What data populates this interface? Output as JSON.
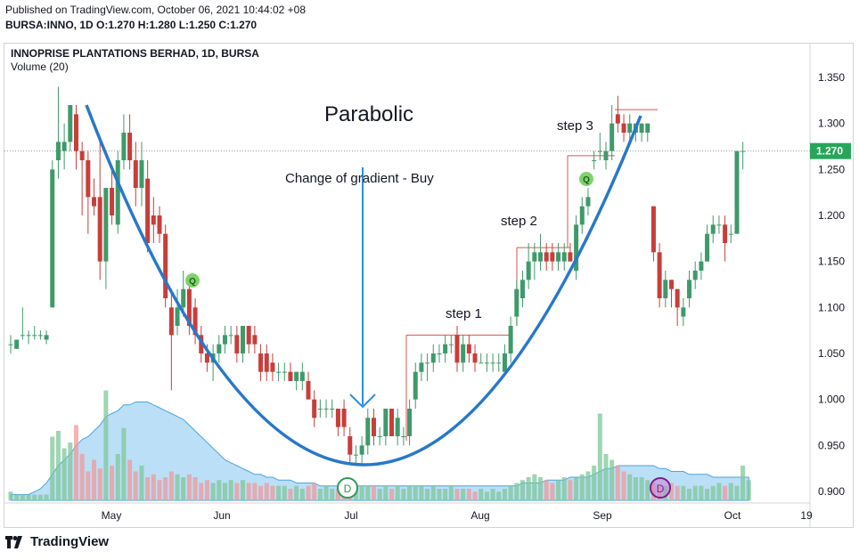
{
  "header": {
    "published": "Published on TradingView.com, October 06, 2021 10:44:02 +08",
    "ohlc_line": "BURSA:INNO, 1D  O:1.270 H:1.280 L:1.250 C:1.270"
  },
  "legend": {
    "symbol": "INNOPRISE PLANTATIONS BERHAD, 1D, BURSA",
    "volume": "Volume (20)"
  },
  "footer": {
    "brand": "TradingView"
  },
  "colors": {
    "up": "#3f9a6a",
    "down": "#c83e3a",
    "curve": "#2878c8",
    "last_price": "#26a65b"
  },
  "chart_data": {
    "type": "candlestick",
    "y_ticks": [
      "1.350",
      "1.300",
      "1.250",
      "1.200",
      "1.150",
      "1.100",
      "1.050",
      "1.000",
      "0.950",
      "0.900"
    ],
    "ylim": [
      0.885,
      1.365
    ],
    "x_labels": [
      "May",
      "Jun",
      "Jul",
      "Aug",
      "Sep",
      "Oct",
      "19"
    ],
    "last_price_label": "1.270",
    "candles": [
      {
        "o": 1.06,
        "h": 1.07,
        "l": 1.05,
        "c": 1.06
      },
      {
        "o": 1.055,
        "h": 1.065,
        "l": 1.055,
        "c": 1.065
      },
      {
        "o": 1.07,
        "h": 1.1,
        "l": 1.065,
        "c": 1.07
      },
      {
        "o": 1.07,
        "h": 1.075,
        "l": 1.06,
        "c": 1.07
      },
      {
        "o": 1.07,
        "h": 1.08,
        "l": 1.065,
        "c": 1.07
      },
      {
        "o": 1.07,
        "h": 1.075,
        "l": 1.065,
        "c": 1.07
      },
      {
        "o": 1.065,
        "h": 1.075,
        "l": 1.06,
        "c": 1.07
      },
      {
        "o": 1.1,
        "h": 1.26,
        "l": 1.1,
        "c": 1.25
      },
      {
        "o": 1.26,
        "h": 1.34,
        "l": 1.24,
        "c": 1.28
      },
      {
        "o": 1.27,
        "h": 1.3,
        "l": 1.25,
        "c": 1.28
      },
      {
        "o": 1.28,
        "h": 1.32,
        "l": 1.27,
        "c": 1.32
      },
      {
        "o": 1.31,
        "h": 1.32,
        "l": 1.25,
        "c": 1.27
      },
      {
        "o": 1.27,
        "h": 1.28,
        "l": 1.2,
        "c": 1.26
      },
      {
        "o": 1.26,
        "h": 1.27,
        "l": 1.18,
        "c": 1.22
      },
      {
        "o": 1.22,
        "h": 1.24,
        "l": 1.2,
        "c": 1.21
      },
      {
        "o": 1.22,
        "h": 1.28,
        "l": 1.13,
        "c": 1.15
      },
      {
        "o": 1.15,
        "h": 1.23,
        "l": 1.12,
        "c": 1.23
      },
      {
        "o": 1.23,
        "h": 1.25,
        "l": 1.19,
        "c": 1.2
      },
      {
        "o": 1.19,
        "h": 1.27,
        "l": 1.18,
        "c": 1.26
      },
      {
        "o": 1.26,
        "h": 1.31,
        "l": 1.25,
        "c": 1.29
      },
      {
        "o": 1.29,
        "h": 1.31,
        "l": 1.25,
        "c": 1.26
      },
      {
        "o": 1.26,
        "h": 1.28,
        "l": 1.21,
        "c": 1.23
      },
      {
        "o": 1.23,
        "h": 1.28,
        "l": 1.21,
        "c": 1.26
      },
      {
        "o": 1.24,
        "h": 1.26,
        "l": 1.16,
        "c": 1.17
      },
      {
        "o": 1.2,
        "h": 1.22,
        "l": 1.17,
        "c": 1.19
      },
      {
        "o": 1.2,
        "h": 1.21,
        "l": 1.17,
        "c": 1.18
      },
      {
        "o": 1.18,
        "h": 1.19,
        "l": 1.1,
        "c": 1.11
      },
      {
        "o": 1.1,
        "h": 1.12,
        "l": 1.01,
        "c": 1.07
      },
      {
        "o": 1.08,
        "h": 1.12,
        "l": 1.07,
        "c": 1.1
      },
      {
        "o": 1.1,
        "h": 1.14,
        "l": 1.09,
        "c": 1.12
      },
      {
        "o": 1.12,
        "h": 1.13,
        "l": 1.07,
        "c": 1.08
      },
      {
        "o": 1.1,
        "h": 1.11,
        "l": 1.06,
        "c": 1.07
      },
      {
        "o": 1.07,
        "h": 1.08,
        "l": 1.04,
        "c": 1.05
      },
      {
        "o": 1.05,
        "h": 1.06,
        "l": 1.03,
        "c": 1.04
      },
      {
        "o": 1.04,
        "h": 1.06,
        "l": 1.02,
        "c": 1.05
      },
      {
        "o": 1.05,
        "h": 1.07,
        "l": 1.04,
        "c": 1.06
      },
      {
        "o": 1.06,
        "h": 1.08,
        "l": 1.05,
        "c": 1.07
      },
      {
        "o": 1.07,
        "h": 1.08,
        "l": 1.06,
        "c": 1.07
      },
      {
        "o": 1.07,
        "h": 1.08,
        "l": 1.04,
        "c": 1.05
      },
      {
        "o": 1.05,
        "h": 1.08,
        "l": 1.04,
        "c": 1.08
      },
      {
        "o": 1.08,
        "h": 1.08,
        "l": 1.05,
        "c": 1.06
      },
      {
        "o": 1.07,
        "h": 1.08,
        "l": 1.05,
        "c": 1.06
      },
      {
        "o": 1.05,
        "h": 1.06,
        "l": 1.02,
        "c": 1.03
      },
      {
        "o": 1.05,
        "h": 1.06,
        "l": 1.02,
        "c": 1.03
      },
      {
        "o": 1.04,
        "h": 1.05,
        "l": 1.02,
        "c": 1.03
      },
      {
        "o": 1.03,
        "h": 1.04,
        "l": 1.02,
        "c": 1.03
      },
      {
        "o": 1.03,
        "h": 1.04,
        "l": 1.02,
        "c": 1.03
      },
      {
        "o": 1.03,
        "h": 1.04,
        "l": 1.02,
        "c": 1.02
      },
      {
        "o": 1.02,
        "h": 1.03,
        "l": 1.01,
        "c": 1.03
      },
      {
        "o": 1.02,
        "h": 1.04,
        "l": 1.01,
        "c": 1.03
      },
      {
        "o": 1.02,
        "h": 1.03,
        "l": 1.0,
        "c": 1.0
      },
      {
        "o": 1.0,
        "h": 1.01,
        "l": 0.97,
        "c": 0.98
      },
      {
        "o": 0.99,
        "h": 1.0,
        "l": 0.98,
        "c": 0.99
      },
      {
        "o": 0.99,
        "h": 1.0,
        "l": 0.98,
        "c": 0.99
      },
      {
        "o": 0.99,
        "h": 1.0,
        "l": 0.98,
        "c": 0.99
      },
      {
        "o": 0.99,
        "h": 0.99,
        "l": 0.96,
        "c": 0.97
      },
      {
        "o": 0.99,
        "h": 1.0,
        "l": 0.96,
        "c": 0.97
      },
      {
        "o": 0.96,
        "h": 0.97,
        "l": 0.93,
        "c": 0.94
      },
      {
        "o": 0.94,
        "h": 0.95,
        "l": 0.93,
        "c": 0.94
      },
      {
        "o": 0.94,
        "h": 0.96,
        "l": 0.93,
        "c": 0.95
      },
      {
        "o": 0.95,
        "h": 0.99,
        "l": 0.94,
        "c": 0.98
      },
      {
        "o": 0.98,
        "h": 0.99,
        "l": 0.95,
        "c": 0.96
      },
      {
        "o": 0.96,
        "h": 0.97,
        "l": 0.95,
        "c": 0.96
      },
      {
        "o": 0.96,
        "h": 0.99,
        "l": 0.95,
        "c": 0.99
      },
      {
        "o": 0.99,
        "h": 0.99,
        "l": 0.96,
        "c": 0.96
      },
      {
        "o": 0.96,
        "h": 0.99,
        "l": 0.95,
        "c": 0.98
      },
      {
        "o": 0.96,
        "h": 0.97,
        "l": 0.95,
        "c": 0.96
      },
      {
        "o": 0.96,
        "h": 1.0,
        "l": 0.95,
        "c": 0.99
      },
      {
        "o": 1.0,
        "h": 1.04,
        "l": 0.99,
        "c": 1.03
      },
      {
        "o": 1.03,
        "h": 1.05,
        "l": 1.02,
        "c": 1.04
      },
      {
        "o": 1.04,
        "h": 1.05,
        "l": 1.02,
        "c": 1.04
      },
      {
        "o": 1.04,
        "h": 1.06,
        "l": 1.03,
        "c": 1.05
      },
      {
        "o": 1.05,
        "h": 1.06,
        "l": 1.04,
        "c": 1.05
      },
      {
        "o": 1.05,
        "h": 1.07,
        "l": 1.04,
        "c": 1.06
      },
      {
        "o": 1.06,
        "h": 1.07,
        "l": 1.05,
        "c": 1.06
      },
      {
        "o": 1.07,
        "h": 1.08,
        "l": 1.03,
        "c": 1.04
      },
      {
        "o": 1.04,
        "h": 1.07,
        "l": 1.03,
        "c": 1.06
      },
      {
        "o": 1.06,
        "h": 1.07,
        "l": 1.04,
        "c": 1.05
      },
      {
        "o": 1.05,
        "h": 1.06,
        "l": 1.03,
        "c": 1.04
      },
      {
        "o": 1.04,
        "h": 1.05,
        "l": 1.04,
        "c": 1.04
      },
      {
        "o": 1.04,
        "h": 1.05,
        "l": 1.03,
        "c": 1.04
      },
      {
        "o": 1.04,
        "h": 1.05,
        "l": 1.03,
        "c": 1.04
      },
      {
        "o": 1.04,
        "h": 1.05,
        "l": 1.03,
        "c": 1.04
      },
      {
        "o": 1.03,
        "h": 1.06,
        "l": 1.03,
        "c": 1.05
      },
      {
        "o": 1.05,
        "h": 1.09,
        "l": 1.04,
        "c": 1.08
      },
      {
        "o": 1.09,
        "h": 1.13,
        "l": 1.08,
        "c": 1.12
      },
      {
        "o": 1.11,
        "h": 1.14,
        "l": 1.1,
        "c": 1.13
      },
      {
        "o": 1.13,
        "h": 1.17,
        "l": 1.12,
        "c": 1.15
      },
      {
        "o": 1.15,
        "h": 1.17,
        "l": 1.13,
        "c": 1.16
      },
      {
        "o": 1.15,
        "h": 1.18,
        "l": 1.14,
        "c": 1.16
      },
      {
        "o": 1.16,
        "h": 1.17,
        "l": 1.14,
        "c": 1.15
      },
      {
        "o": 1.16,
        "h": 1.17,
        "l": 1.14,
        "c": 1.15
      },
      {
        "o": 1.15,
        "h": 1.17,
        "l": 1.14,
        "c": 1.16
      },
      {
        "o": 1.15,
        "h": 1.17,
        "l": 1.14,
        "c": 1.16
      },
      {
        "o": 1.16,
        "h": 1.17,
        "l": 1.15,
        "c": 1.15
      },
      {
        "o": 1.14,
        "h": 1.2,
        "l": 1.13,
        "c": 1.19
      },
      {
        "o": 1.19,
        "h": 1.22,
        "l": 1.18,
        "c": 1.21
      },
      {
        "o": 1.21,
        "h": 1.23,
        "l": 1.2,
        "c": 1.22
      },
      {
        "o": 1.26,
        "h": 1.27,
        "l": 1.25,
        "c": 1.26
      },
      {
        "o": 1.27,
        "h": 1.29,
        "l": 1.26,
        "c": 1.27
      },
      {
        "o": 1.26,
        "h": 1.28,
        "l": 1.25,
        "c": 1.27
      },
      {
        "o": 1.27,
        "h": 1.32,
        "l": 1.26,
        "c": 1.3
      },
      {
        "o": 1.31,
        "h": 1.33,
        "l": 1.29,
        "c": 1.3
      },
      {
        "o": 1.3,
        "h": 1.31,
        "l": 1.28,
        "c": 1.29
      },
      {
        "o": 1.29,
        "h": 1.31,
        "l": 1.28,
        "c": 1.3
      },
      {
        "o": 1.29,
        "h": 1.3,
        "l": 1.28,
        "c": 1.3
      },
      {
        "o": 1.29,
        "h": 1.3,
        "l": 1.28,
        "c": 1.3
      },
      {
        "o": 1.29,
        "h": 1.3,
        "l": 1.28,
        "c": 1.3
      },
      {
        "o": 1.21,
        "h": 1.21,
        "l": 1.15,
        "c": 1.16
      },
      {
        "o": 1.16,
        "h": 1.17,
        "l": 1.1,
        "c": 1.11
      },
      {
        "o": 1.11,
        "h": 1.14,
        "l": 1.1,
        "c": 1.13
      },
      {
        "o": 1.13,
        "h": 1.13,
        "l": 1.1,
        "c": 1.12
      },
      {
        "o": 1.12,
        "h": 1.12,
        "l": 1.08,
        "c": 1.1
      },
      {
        "o": 1.09,
        "h": 1.11,
        "l": 1.08,
        "c": 1.1
      },
      {
        "o": 1.11,
        "h": 1.14,
        "l": 1.1,
        "c": 1.13
      },
      {
        "o": 1.13,
        "h": 1.15,
        "l": 1.12,
        "c": 1.14
      },
      {
        "o": 1.14,
        "h": 1.16,
        "l": 1.13,
        "c": 1.15
      },
      {
        "o": 1.15,
        "h": 1.19,
        "l": 1.15,
        "c": 1.18
      },
      {
        "o": 1.18,
        "h": 1.2,
        "l": 1.17,
        "c": 1.19
      },
      {
        "o": 1.19,
        "h": 1.2,
        "l": 1.18,
        "c": 1.19
      },
      {
        "o": 1.19,
        "h": 1.2,
        "l": 1.15,
        "c": 1.17
      },
      {
        "o": 1.18,
        "h": 1.19,
        "l": 1.17,
        "c": 1.18
      },
      {
        "o": 1.18,
        "h": 1.27,
        "l": 1.18,
        "c": 1.27
      },
      {
        "o": 1.27,
        "h": 1.28,
        "l": 1.25,
        "c": 1.27
      }
    ],
    "volume": [
      3,
      2,
      2,
      2,
      2,
      2,
      2,
      22,
      24,
      18,
      20,
      26,
      16,
      10,
      14,
      11,
      38,
      12,
      16,
      25,
      14,
      10,
      12,
      8,
      9,
      7,
      8,
      10,
      9,
      8,
      9,
      8,
      6,
      7,
      6,
      7,
      6,
      7,
      6,
      7,
      6,
      6,
      5,
      6,
      5,
      5,
      5,
      4,
      5,
      4,
      5,
      6,
      4,
      5,
      4,
      4,
      5,
      4,
      4,
      5,
      5,
      5,
      4,
      5,
      4,
      5,
      4,
      5,
      5,
      5,
      4,
      5,
      4,
      4,
      5,
      4,
      4,
      4,
      3,
      4,
      3,
      4,
      3,
      4,
      5,
      6,
      7,
      8,
      9,
      8,
      7,
      6,
      7,
      8,
      7,
      8,
      9,
      10,
      12,
      30,
      16,
      14,
      12,
      10,
      9,
      8,
      8,
      7,
      6,
      5,
      5,
      6,
      5,
      5,
      4,
      5,
      5,
      4,
      5,
      6,
      5,
      6,
      5,
      12,
      7
    ],
    "volume_ma": [
      2,
      2,
      2,
      2,
      3,
      4,
      6,
      9,
      12,
      14,
      16,
      19,
      21,
      22,
      24,
      26,
      29,
      30,
      31,
      33,
      33,
      34,
      34,
      34,
      33,
      32,
      31,
      30,
      29,
      28,
      26,
      24,
      22,
      20,
      18,
      16,
      14,
      13,
      12,
      11,
      10,
      9,
      9,
      8,
      8,
      7,
      7,
      7,
      6,
      6,
      6,
      6,
      5,
      5,
      5,
      5,
      5,
      5,
      5,
      5,
      5,
      5,
      5,
      5,
      5,
      5,
      5,
      5,
      5,
      5,
      5,
      5,
      5,
      5,
      5,
      5,
      5,
      5,
      5,
      5,
      5,
      5,
      5,
      5,
      5,
      5,
      6,
      6,
      6,
      6,
      7,
      7,
      7,
      7,
      8,
      8,
      8,
      8,
      9,
      10,
      11,
      11,
      12,
      12,
      12,
      12,
      12,
      12,
      12,
      11,
      11,
      10,
      10,
      10,
      9,
      9,
      9,
      9,
      8,
      8,
      8,
      8,
      8,
      8,
      8
    ],
    "annotations": {
      "title": "Parabolic",
      "arrow_label": "Change of gradient - Buy",
      "steps": [
        "step 1",
        "step 2",
        "step 3"
      ],
      "markers": [
        "Q",
        "Q",
        "D",
        "D"
      ],
      "resistance_levels": [
        1.07,
        1.165,
        1.265,
        1.315
      ]
    }
  }
}
